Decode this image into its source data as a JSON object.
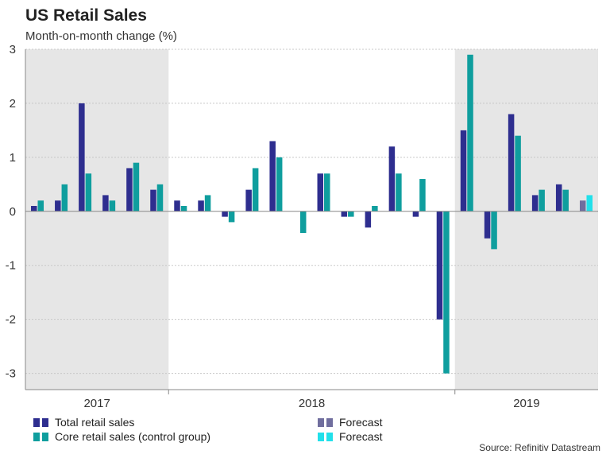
{
  "title": "US Retail Sales",
  "subtitle": "Month-on-month change (%)",
  "source": "Source: Refinitiv Datastream",
  "legend": {
    "total": "Total retail sales",
    "core": "Core retail sales (control group)",
    "forecast_total": "Forecast",
    "forecast_core": "Forecast"
  },
  "colors": {
    "total": "#2e2e8f",
    "core": "#0f9e9e",
    "forecast_total": "#706e9e",
    "forecast_core": "#22e0ea",
    "shade": "#e6e6e6"
  },
  "chart_data": {
    "type": "bar",
    "title": "US Retail Sales",
    "ylabel": "Month-on-month change (%)",
    "ylim": [
      -3.3,
      3
    ],
    "yticks": [
      3,
      2,
      1,
      0,
      -1,
      -2,
      -3
    ],
    "year_labels": [
      "2017",
      "2018",
      "2019"
    ],
    "shaded_years": [
      "2017",
      "2019"
    ],
    "months_per_year": [
      6,
      12,
      6
    ],
    "series": [
      {
        "name": "Total retail sales",
        "values": [
          0.1,
          0.2,
          2.0,
          0.3,
          0.8,
          0.4,
          0.2,
          0.2,
          -0.1,
          0.4,
          1.3,
          0.0,
          0.7,
          -0.1,
          -0.3,
          1.2,
          -0.1,
          -2.0,
          1.5,
          -0.5,
          1.8,
          0.3,
          0.5,
          0.2
        ],
        "forecast_from_index": 23
      },
      {
        "name": "Core retail sales (control group)",
        "values": [
          0.2,
          0.5,
          0.7,
          0.2,
          0.9,
          0.5,
          0.1,
          0.3,
          -0.2,
          0.8,
          1.0,
          -0.4,
          0.7,
          -0.1,
          0.1,
          0.7,
          0.6,
          -3.0,
          2.9,
          -0.7,
          1.4,
          0.4,
          0.4,
          0.3
        ],
        "forecast_from_index": 23
      }
    ]
  }
}
